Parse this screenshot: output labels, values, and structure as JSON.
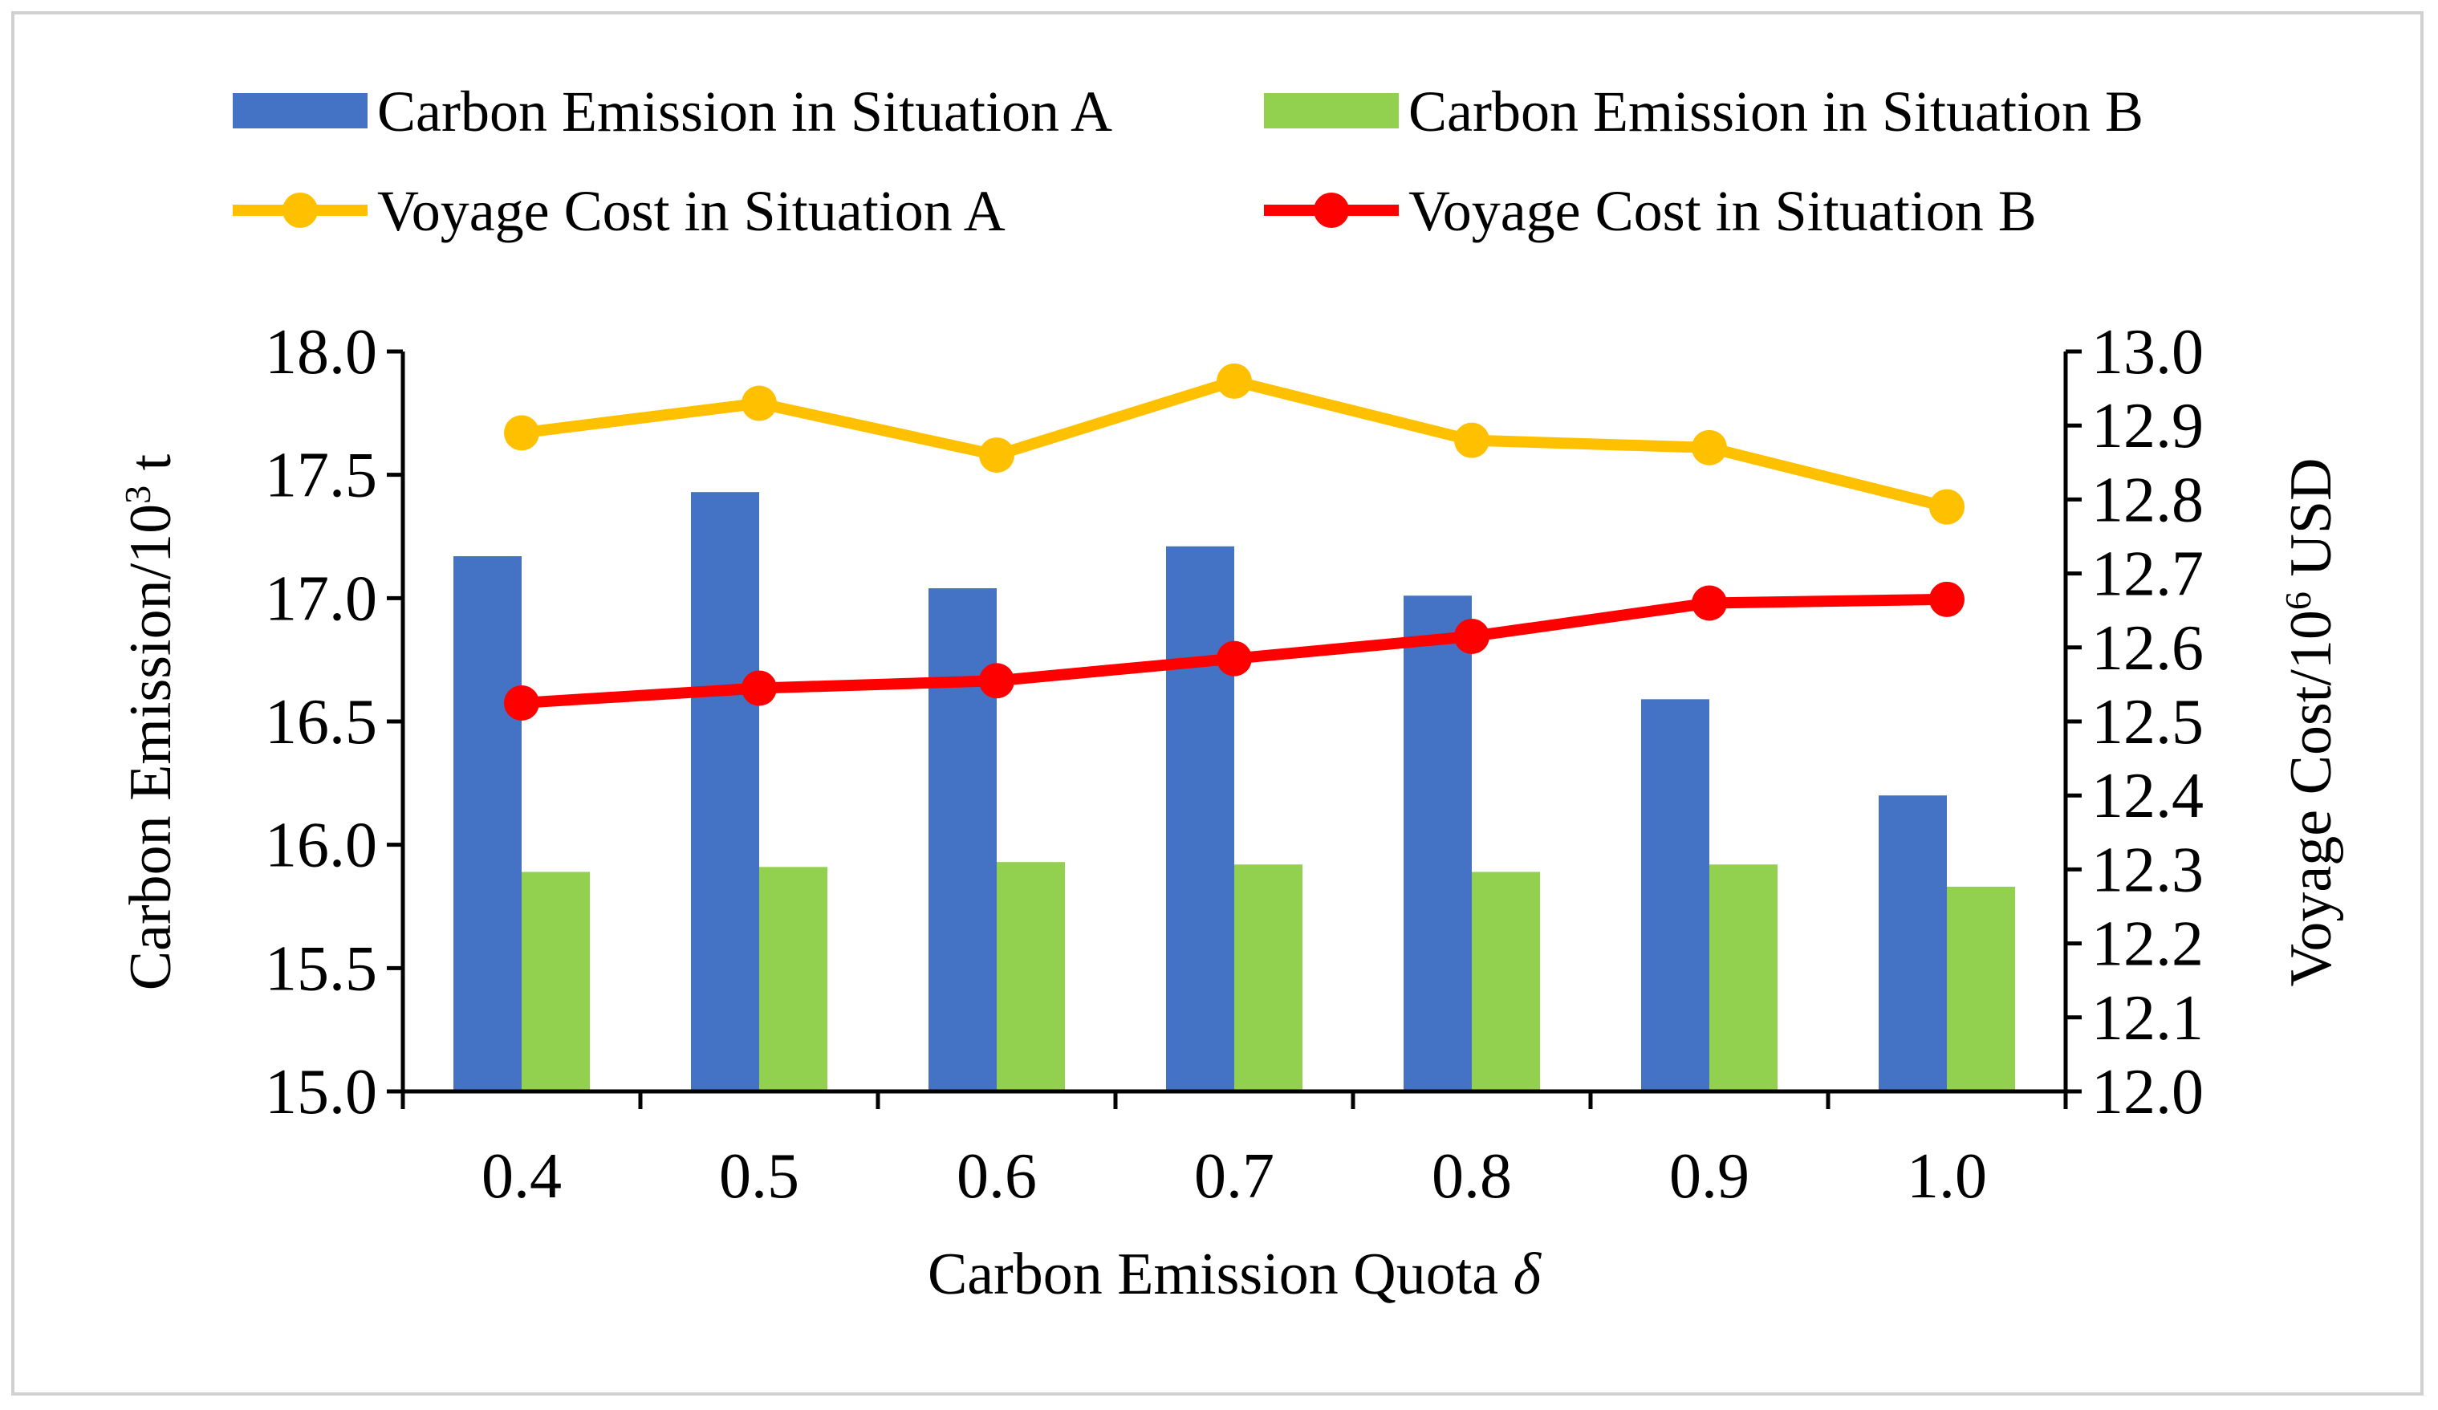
{
  "chart_data": {
    "type": "bar+line",
    "title": "",
    "categories": [
      "0.4",
      "0.5",
      "0.6",
      "0.7",
      "0.8",
      "0.9",
      "1.0"
    ],
    "xlabel": "Carbon Emission Quota",
    "xlabel_symbol": "δ",
    "ylabel_left": {
      "main": "Carbon Emission/10",
      "sup": "3",
      "tail": " t"
    },
    "ylabel_right": {
      "main": "Voyage Cost/10",
      "sup": "6",
      "tail": " USD"
    },
    "y_left": {
      "min": 15.0,
      "max": 18.0,
      "step": 0.5,
      "ticks": [
        "15.0",
        "15.5",
        "16.0",
        "16.5",
        "17.0",
        "17.5",
        "18.0"
      ]
    },
    "y_right": {
      "min": 12.0,
      "max": 13.0,
      "step": 0.1,
      "ticks": [
        "12.0",
        "12.1",
        "12.2",
        "12.3",
        "12.4",
        "12.5",
        "12.6",
        "12.7",
        "12.8",
        "12.9",
        "13.0"
      ]
    },
    "bar_series": [
      {
        "name": "Carbon Emission in Situation A",
        "color": "#4472C4",
        "values": [
          17.17,
          17.43,
          17.04,
          17.21,
          17.01,
          16.59,
          16.2
        ]
      },
      {
        "name": "Carbon Emission in Situation B",
        "color": "#92D050",
        "values": [
          15.89,
          15.91,
          15.93,
          15.92,
          15.89,
          15.92,
          15.83
        ]
      }
    ],
    "line_series": [
      {
        "name": "Voyage Cost in Situation A",
        "color": "#FFC000",
        "values": [
          12.89,
          12.93,
          12.86,
          12.96,
          12.88,
          12.87,
          12.79
        ]
      },
      {
        "name": "Voyage Cost in Situation B",
        "color": "#FF0000",
        "values": [
          12.525,
          12.545,
          12.555,
          12.585,
          12.615,
          12.66,
          12.665
        ]
      }
    ],
    "legend_position": "top",
    "grid": false
  }
}
